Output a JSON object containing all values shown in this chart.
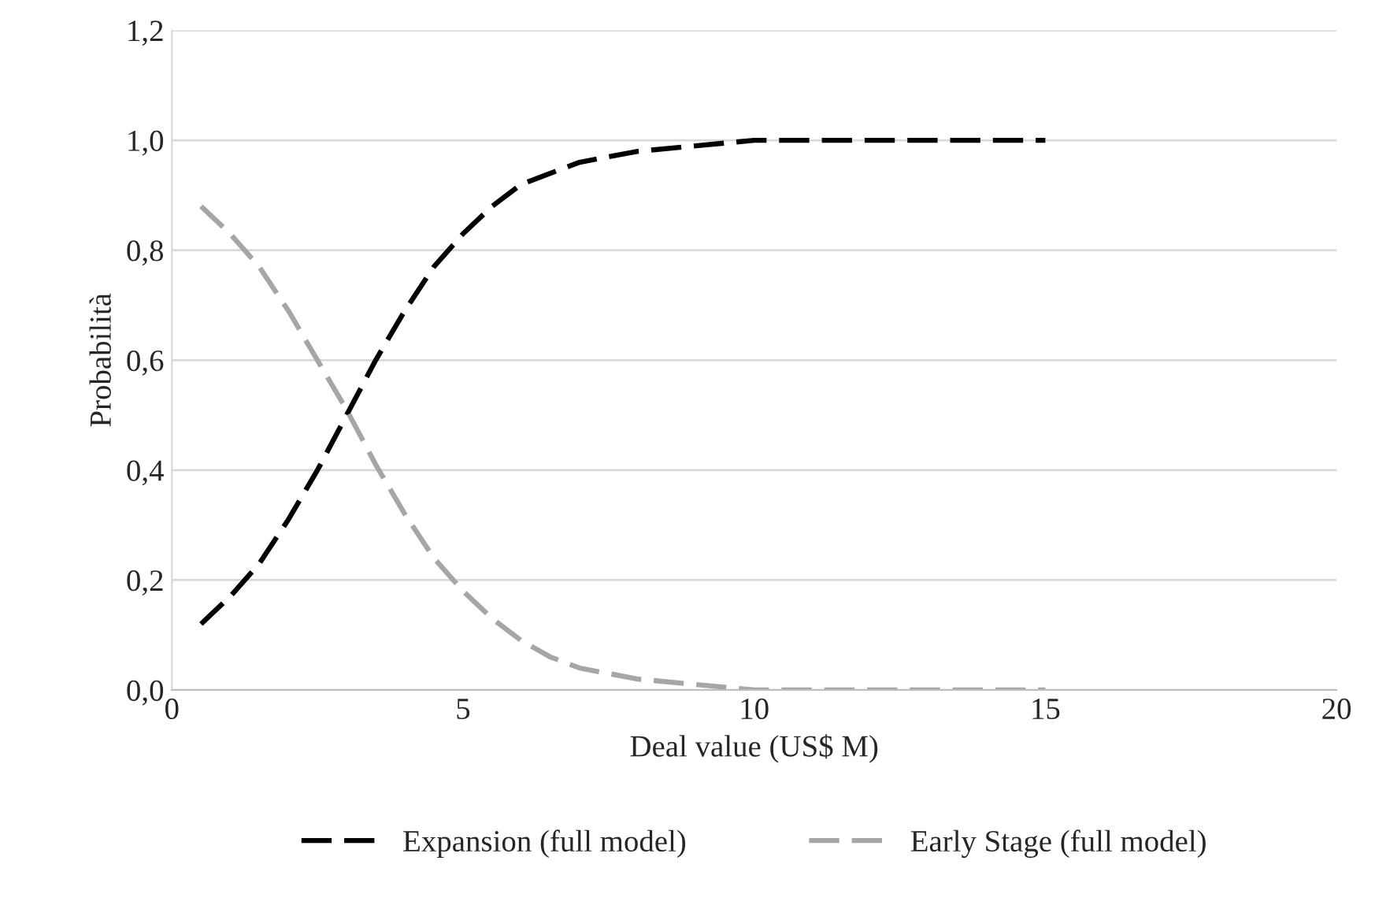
{
  "chart_data": {
    "type": "line",
    "xlabel": "Deal value (US$ M)",
    "ylabel": "Probabilità",
    "x": [
      0.5,
      1,
      1.5,
      2,
      2.5,
      3,
      3.5,
      4,
      4.5,
      5,
      5.5,
      6,
      6.5,
      7,
      8,
      9,
      10,
      11,
      12,
      13,
      14,
      15
    ],
    "series": [
      {
        "name": "Expansion (full model)",
        "color": "#000000",
        "values": [
          0.12,
          0.17,
          0.23,
          0.31,
          0.4,
          0.5,
          0.6,
          0.69,
          0.77,
          0.83,
          0.88,
          0.92,
          0.94,
          0.96,
          0.98,
          0.99,
          1.0,
          1.0,
          1.0,
          1.0,
          1.0,
          1.0
        ]
      },
      {
        "name": "Early Stage (full model)",
        "color": "#a6a6a6",
        "values": [
          0.88,
          0.83,
          0.77,
          0.69,
          0.6,
          0.51,
          0.41,
          0.32,
          0.24,
          0.18,
          0.13,
          0.09,
          0.06,
          0.04,
          0.02,
          0.01,
          0.0,
          0.0,
          0.0,
          0.0,
          0.0,
          0.0
        ]
      }
    ],
    "xlim": [
      0,
      20
    ],
    "xticks": [
      0,
      5,
      10,
      15,
      20
    ],
    "ylim": [
      0,
      1.2
    ],
    "yticks": [
      {
        "value": 0,
        "label": "0,0"
      },
      {
        "value": 0.2,
        "label": "0,2"
      },
      {
        "value": 0.4,
        "label": "0,4"
      },
      {
        "value": 0.6,
        "label": "0,6"
      },
      {
        "value": 0.8,
        "label": "0,8"
      },
      {
        "value": 1.0,
        "label": "1,0"
      },
      {
        "value": 1.2,
        "label": "1,2"
      }
    ],
    "grid": "y",
    "legend": "bottom",
    "marker": "none",
    "line_style": "dashed"
  }
}
